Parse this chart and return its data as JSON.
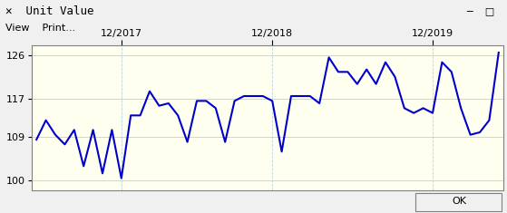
{
  "title": "Unit Value",
  "plot_bg_color": "#FFFFF0",
  "outer_bg_color": "#F0F0F0",
  "window_bg": "#F0F0F0",
  "title_bar_color": "#FFFFFF",
  "line_color": "#0000CC",
  "line_width": 1.5,
  "ylim": [
    98,
    128
  ],
  "yticks": [
    100,
    109,
    117,
    126
  ],
  "x_tick_labels": [
    "12/2017",
    "12/2018",
    "12/2019"
  ],
  "y_values": [
    108.5,
    112.5,
    109.5,
    107.5,
    110.5,
    103.0,
    110.5,
    101.5,
    110.5,
    100.5,
    113.5,
    113.5,
    118.5,
    115.5,
    116.0,
    113.5,
    108.0,
    116.5,
    116.5,
    115.0,
    108.0,
    116.5,
    117.5,
    117.5,
    117.5,
    116.5,
    106.0,
    117.5,
    117.5,
    117.5,
    116.0,
    125.5,
    122.5,
    122.5,
    120.0,
    123.0,
    120.0,
    124.5,
    121.5,
    115.0,
    114.0,
    115.0,
    114.0,
    124.5,
    122.5,
    115.0,
    109.5,
    110.0,
    112.5,
    126.5
  ],
  "x_tick_positions": [
    9,
    25,
    42
  ],
  "grid_color_h": "#ADD8E6",
  "grid_color_v": "#B8D4E8",
  "header_gray": "#D4D0C8",
  "border_color": "#808080"
}
